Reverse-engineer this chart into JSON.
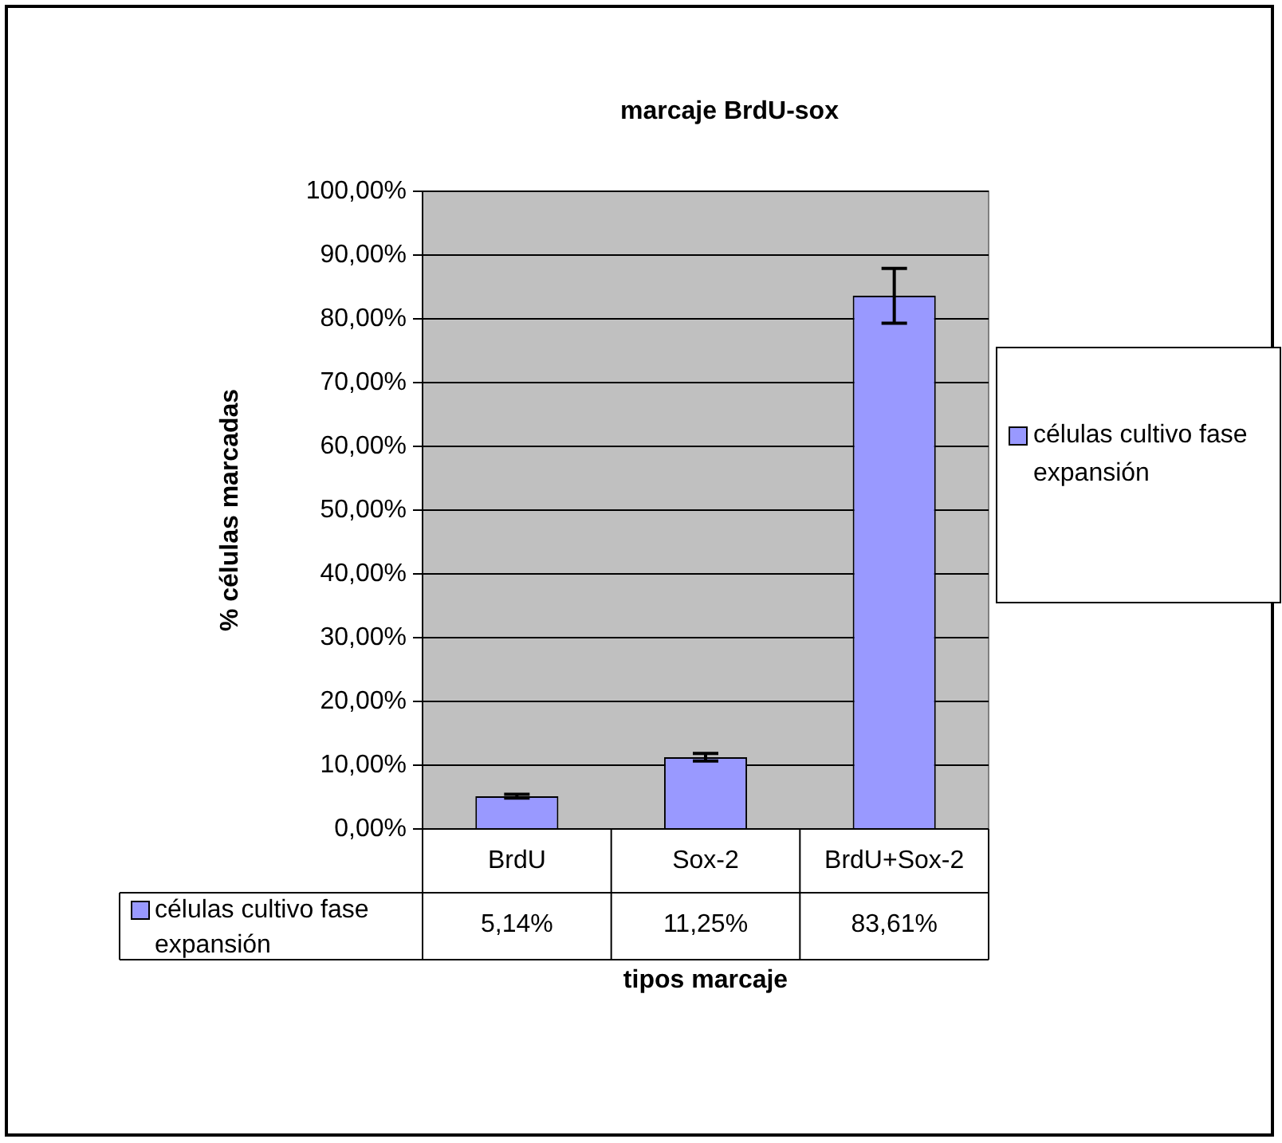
{
  "chart_data": {
    "type": "bar",
    "title": "marcaje BrdU-sox",
    "xlabel": "tipos marcaje",
    "ylabel": "% células marcadas",
    "categories": [
      "BrdU",
      "Sox-2",
      "BrdU+Sox-2"
    ],
    "series": [
      {
        "name": "células cultivo fase expansión",
        "color": "#9999ff",
        "values": [
          5.14,
          11.25,
          83.61
        ],
        "errors": [
          0.3,
          0.6,
          4.3
        ],
        "value_labels": [
          "5,14%",
          "11,25%",
          "83,61%"
        ]
      }
    ],
    "ylim": [
      0,
      100
    ],
    "yticks": [
      {
        "value": 0,
        "label": "0,00%"
      },
      {
        "value": 10,
        "label": "10,00%"
      },
      {
        "value": 20,
        "label": "20,00%"
      },
      {
        "value": 30,
        "label": "30,00%"
      },
      {
        "value": 40,
        "label": "40,00%"
      },
      {
        "value": 50,
        "label": "50,00%"
      },
      {
        "value": 60,
        "label": "60,00%"
      },
      {
        "value": 70,
        "label": "70,00%"
      },
      {
        "value": 80,
        "label": "80,00%"
      },
      {
        "value": 90,
        "label": "90,00%"
      },
      {
        "value": 100,
        "label": "100,00%"
      }
    ],
    "grid": "y",
    "legend": "right"
  }
}
